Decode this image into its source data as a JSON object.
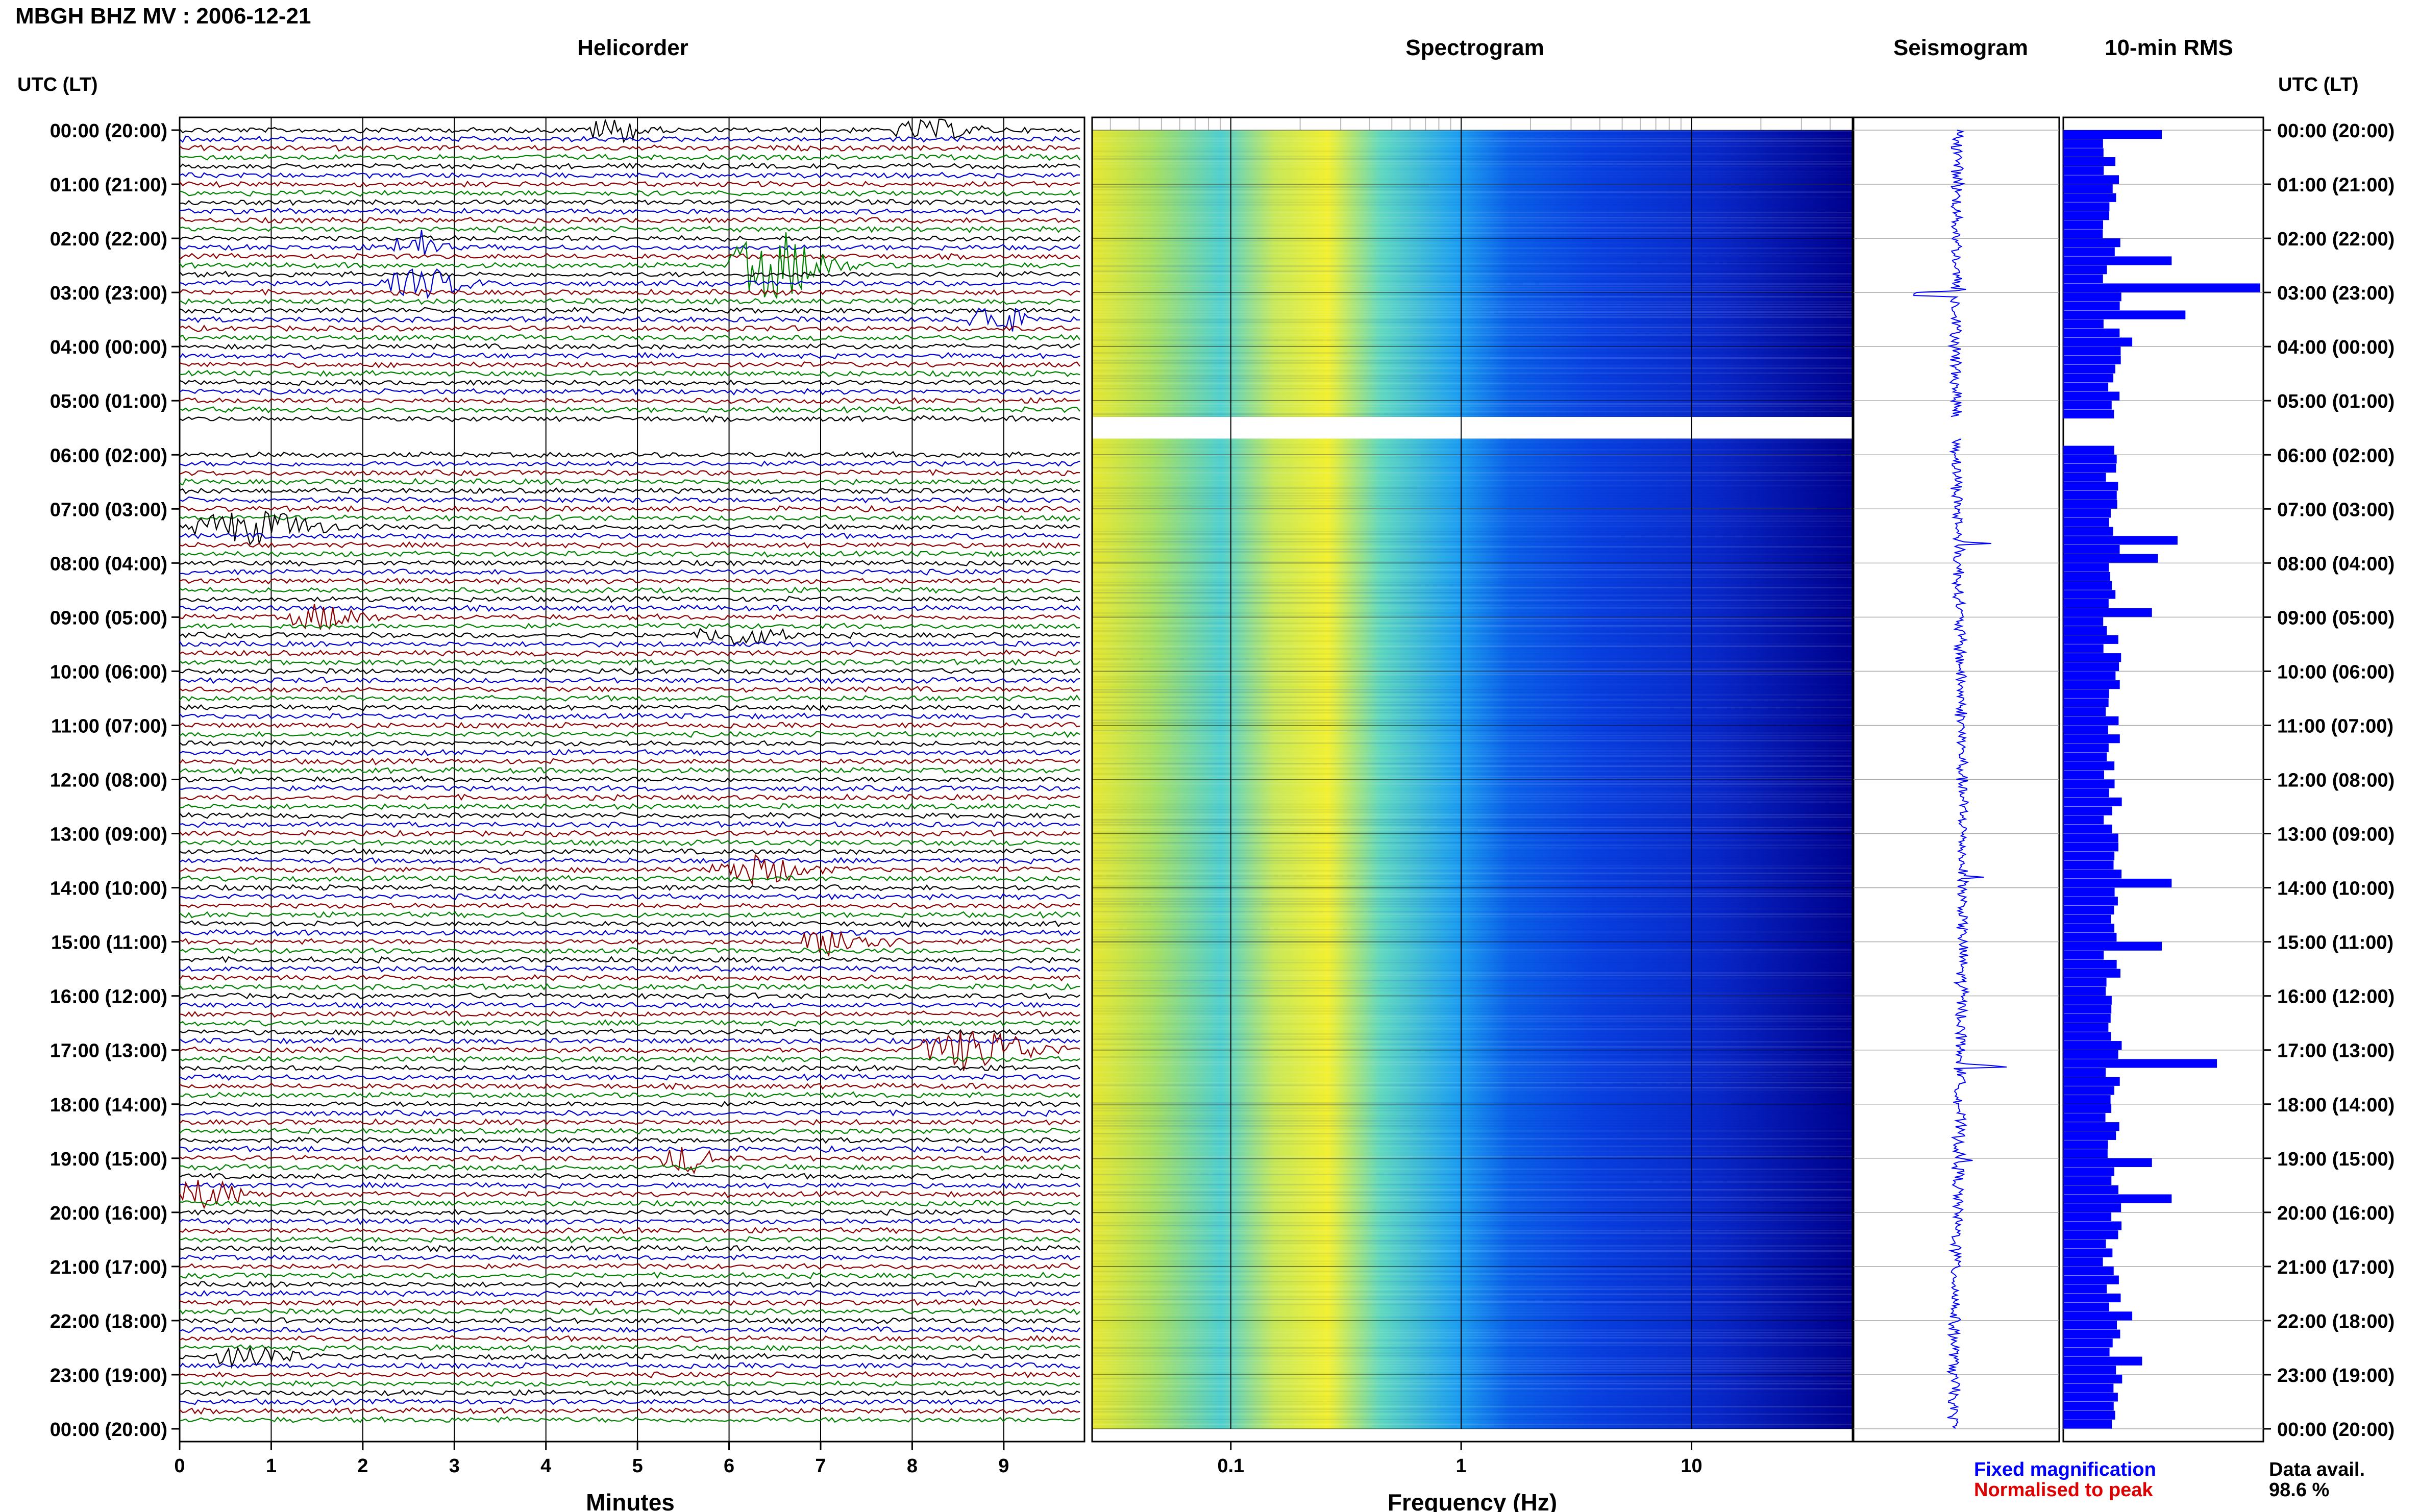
{
  "header": {
    "title": "MBGH BHZ MV : 2006-12-21"
  },
  "panels": {
    "helicorder": "Helicorder",
    "spectrogram": "Spectrogram",
    "seismogram": "Seismogram",
    "rms": "10-min RMS"
  },
  "axes": {
    "time_label": "UTC (LT)",
    "minutes_label": "Minutes",
    "frequency_label": "Frequency (Hz)"
  },
  "legend": {
    "fixed": "Fixed magnification",
    "normalised": "Normalised to peak",
    "availability_label": "Data avail.",
    "availability_value": "98.6 %"
  },
  "colors": {
    "trace_cycle": [
      "#000000",
      "#0000cc",
      "#8b0000",
      "#008000"
    ],
    "fixed": "#0000ff",
    "normalised": "#dd0000",
    "rms_bar": "#0000ff",
    "seismogram": "#0000ff"
  },
  "chart_data": [
    {
      "type": "line",
      "name": "Helicorder",
      "x_ticks": [
        "0",
        "1",
        "2",
        "3",
        "4",
        "5",
        "6",
        "7",
        "8",
        "9"
      ],
      "xlim": [
        0,
        10
      ],
      "xlabel": "Minutes",
      "rows_per_hour": 6,
      "gap_hours": [
        5.5,
        6.0
      ],
      "events": [
        {
          "hour": 0.0,
          "minute": 4.8,
          "amp": 1.0,
          "dur": 0.6
        },
        {
          "hour": 0.0,
          "minute": 8.3,
          "amp": 0.8,
          "dur": 0.8
        },
        {
          "hour": 2.1,
          "minute": 2.6,
          "amp": 1.6,
          "dur": 0.4
        },
        {
          "hour": 2.5,
          "minute": 6.6,
          "amp": 3.0,
          "dur": 0.9
        },
        {
          "hour": 2.8,
          "minute": 2.7,
          "amp": 1.2,
          "dur": 0.8
        },
        {
          "hour": 3.5,
          "minute": 9.0,
          "amp": 1.5,
          "dur": 0.5
        },
        {
          "hour": 7.3,
          "minute": 0.8,
          "amp": 1.4,
          "dur": 1.2
        },
        {
          "hour": 9.0,
          "minute": 1.6,
          "amp": 1.1,
          "dur": 0.7
        },
        {
          "hour": 9.3,
          "minute": 6.2,
          "amp": 0.8,
          "dur": 0.8
        },
        {
          "hour": 13.7,
          "minute": 6.4,
          "amp": 1.2,
          "dur": 0.9
        },
        {
          "hour": 15.0,
          "minute": 7.3,
          "amp": 1.2,
          "dur": 0.8
        },
        {
          "hour": 17.0,
          "minute": 8.8,
          "amp": 1.8,
          "dur": 1.1
        },
        {
          "hour": 19.0,
          "minute": 5.6,
          "amp": 1.2,
          "dur": 0.5
        },
        {
          "hour": 19.6,
          "minute": 0.3,
          "amp": 1.2,
          "dur": 0.7
        },
        {
          "hour": 22.6,
          "minute": 0.8,
          "amp": 1.0,
          "dur": 0.7
        }
      ]
    },
    {
      "type": "heatmap",
      "name": "Spectrogram",
      "xlabel": "Frequency (Hz)",
      "x_scale": "log",
      "xlim": [
        0.025,
        50
      ],
      "x_ticks": [
        {
          "value": 0.1,
          "label": "0.1"
        },
        {
          "value": 1,
          "label": "1"
        },
        {
          "value": 10,
          "label": "10"
        }
      ],
      "ylim_hours": [
        0,
        24
      ],
      "peak_frequency_hz": 0.3,
      "gap_hours": [
        5.3,
        5.7
      ],
      "colormap": "jet"
    },
    {
      "type": "line",
      "name": "Seismogram",
      "gap_hours": [
        5.3,
        5.7
      ],
      "spikes": [
        {
          "hour": 3.0,
          "amp": 1.0
        },
        {
          "hour": 7.6,
          "amp": 0.6
        },
        {
          "hour": 13.8,
          "amp": 0.5
        },
        {
          "hour": 17.3,
          "amp": 0.8
        },
        {
          "hour": 19.0,
          "amp": 0.7
        }
      ]
    },
    {
      "type": "bar",
      "name": "10-min RMS",
      "bin_minutes": 10,
      "gap_hours": [
        5.3,
        5.7
      ],
      "peaks": [
        {
          "hour": 0.0,
          "value": 0.5
        },
        {
          "hour": 2.3,
          "value": 0.55
        },
        {
          "hour": 2.8,
          "value": 1.0
        },
        {
          "hour": 3.3,
          "value": 0.62
        },
        {
          "hour": 3.8,
          "value": 0.35
        },
        {
          "hour": 7.5,
          "value": 0.58
        },
        {
          "hour": 7.8,
          "value": 0.48
        },
        {
          "hour": 8.9,
          "value": 0.45
        },
        {
          "hour": 13.8,
          "value": 0.55
        },
        {
          "hour": 15.0,
          "value": 0.5
        },
        {
          "hour": 17.2,
          "value": 0.78
        },
        {
          "hour": 19.0,
          "value": 0.45
        },
        {
          "hour": 19.7,
          "value": 0.55
        },
        {
          "hour": 21.8,
          "value": 0.35
        },
        {
          "hour": 22.6,
          "value": 0.4
        }
      ]
    }
  ],
  "time_ticks": [
    "00:00 (20:00)",
    "01:00 (21:00)",
    "02:00 (22:00)",
    "03:00 (23:00)",
    "04:00 (00:00)",
    "05:00 (01:00)",
    "06:00 (02:00)",
    "07:00 (03:00)",
    "08:00 (04:00)",
    "09:00 (05:00)",
    "10:00 (06:00)",
    "11:00 (07:00)",
    "12:00 (08:00)",
    "13:00 (09:00)",
    "14:00 (10:00)",
    "15:00 (11:00)",
    "16:00 (12:00)",
    "17:00 (13:00)",
    "18:00 (14:00)",
    "19:00 (15:00)",
    "20:00 (16:00)",
    "21:00 (17:00)",
    "22:00 (18:00)",
    "23:00 (19:00)",
    "00:00 (20:00)"
  ]
}
